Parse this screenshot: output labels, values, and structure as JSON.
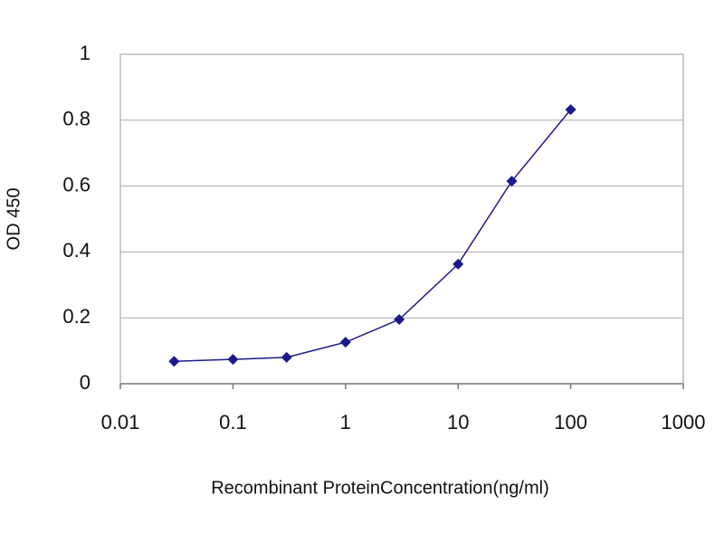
{
  "chart_data": {
    "type": "line",
    "x_label": "Recombinant ProteinConcentration(ng/ml)",
    "y_label": "OD 450",
    "x": [
      0.03,
      0.1,
      0.3,
      1,
      3,
      10,
      30,
      100
    ],
    "series": [
      {
        "color": "#1a1a8c",
        "values": [
          0.068,
          0.074,
          0.08,
          0.126,
          0.195,
          0.363,
          0.615,
          0.832
        ]
      }
    ],
    "xscale": "log",
    "xlim": [
      0.01,
      1000
    ],
    "xticks": [
      0.01,
      0.1,
      1,
      10,
      100,
      1000
    ],
    "ylim": [
      0,
      1
    ],
    "yticks": [
      0,
      0.2,
      0.4,
      0.6,
      0.8,
      1
    ],
    "grid": true
  }
}
